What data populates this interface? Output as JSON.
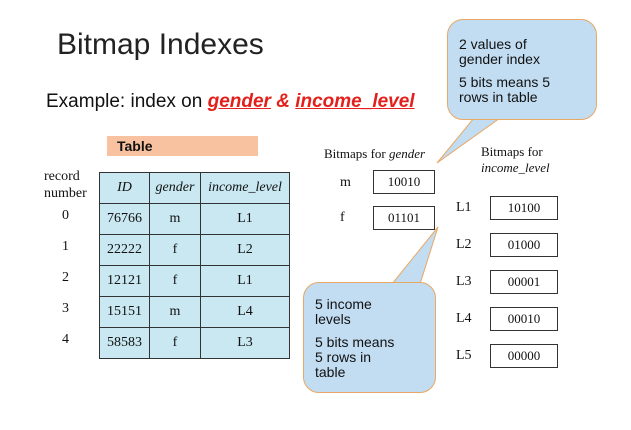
{
  "title": "Bitmap Indexes",
  "subtitle": {
    "prefix": "Example: index on ",
    "gender": "gender",
    "amp": " & ",
    "income": "income_level"
  },
  "table_tab": "Table",
  "record_label": [
    "record",
    "number"
  ],
  "record_numbers": [
    "0",
    "1",
    "2",
    "3",
    "4"
  ],
  "table": {
    "headers": [
      "ID",
      "gender",
      "income_level"
    ],
    "rows": [
      [
        "76766",
        "m",
        "L1"
      ],
      [
        "22222",
        "f",
        "L2"
      ],
      [
        "12121",
        "f",
        "L1"
      ],
      [
        "15151",
        "m",
        "L4"
      ],
      [
        "58583",
        "f",
        "L3"
      ]
    ]
  },
  "gender_bitmaps": {
    "header_prefix": "Bitmaps for ",
    "header_term": "gender",
    "items": [
      {
        "key": "m",
        "bits": "10010"
      },
      {
        "key": "f",
        "bits": "01101"
      }
    ]
  },
  "income_bitmaps": {
    "header_line1": "Bitmaps for",
    "header_line2": "income_level",
    "items": [
      {
        "key": "L1",
        "bits": "10100"
      },
      {
        "key": "L2",
        "bits": "01000"
      },
      {
        "key": "L3",
        "bits": "00001"
      },
      {
        "key": "L4",
        "bits": "00010"
      },
      {
        "key": "L5",
        "bits": "00000"
      }
    ]
  },
  "callout_gender": {
    "line1": "2 values of",
    "line2": "gender index",
    "line3": "5 bits means 5",
    "line4": "rows in table"
  },
  "callout_income": {
    "line1": "5 income",
    "line2": "levels",
    "line3": "5 bits means",
    "line4": "5 rows in",
    "line5": "table"
  },
  "colors": {
    "table_fill": "#c9e8f1",
    "tab_fill": "#f8c19f",
    "callout_fill": "#c2ddf2",
    "callout_border": "#e8a765",
    "highlight_red": "#e3201b"
  }
}
